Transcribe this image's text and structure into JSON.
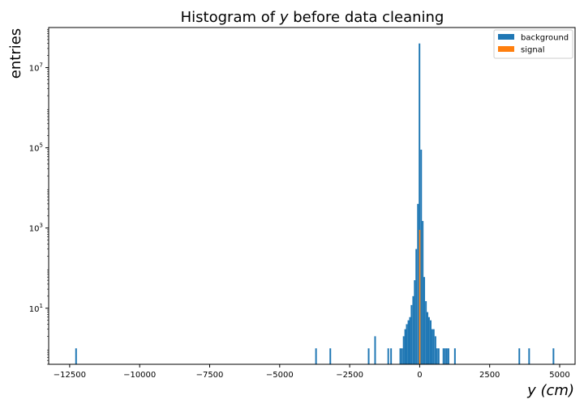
{
  "chart_data": {
    "type": "bar",
    "title_prefix": "Histogram of ",
    "title_var": "y",
    "title_suffix": " before data cleaning",
    "xlabel_var": "y",
    "xlabel_unit": "(cm)",
    "ylabel": "entries",
    "yscale": "log",
    "xlim": [
      -13250,
      5550
    ],
    "ylim": [
      0.4,
      100000000
    ],
    "xticks": [
      -12500,
      -10000,
      -7500,
      -5000,
      -2500,
      0,
      2500,
      5000
    ],
    "xtick_labels": [
      "−12500",
      "−10000",
      "−7500",
      "−5000",
      "−2500",
      "0",
      "2500",
      "5000"
    ],
    "yticks": [
      {
        "base": "10",
        "exp": "1",
        "value": 10
      },
      {
        "base": "10",
        "exp": "3",
        "value": 1000
      },
      {
        "base": "10",
        "exp": "5",
        "value": 100000
      },
      {
        "base": "10",
        "exp": "7",
        "value": 10000000
      }
    ],
    "legend_position": "top-right",
    "series": [
      {
        "name": "background",
        "color": "#1f77b4",
        "bin_width": 57,
        "bins": [
          [
            -12300,
            1
          ],
          [
            -3730,
            1
          ],
          [
            -3220,
            1
          ],
          [
            -1850,
            1
          ],
          [
            -1620,
            2
          ],
          [
            -1150,
            1
          ],
          [
            -1050,
            1
          ],
          [
            -720,
            1
          ],
          [
            -660,
            1
          ],
          [
            -600,
            2
          ],
          [
            -545,
            3
          ],
          [
            -490,
            4
          ],
          [
            -430,
            5
          ],
          [
            -375,
            6
          ],
          [
            -320,
            12
          ],
          [
            -260,
            20
          ],
          [
            -205,
            50
          ],
          [
            -150,
            300
          ],
          [
            -90,
            4000
          ],
          [
            -35,
            40000000
          ],
          [
            25,
            90000
          ],
          [
            80,
            1500
          ],
          [
            135,
            60
          ],
          [
            195,
            15
          ],
          [
            250,
            8
          ],
          [
            305,
            6
          ],
          [
            365,
            5
          ],
          [
            420,
            3
          ],
          [
            475,
            3
          ],
          [
            535,
            2
          ],
          [
            590,
            1
          ],
          [
            650,
            1
          ],
          [
            820,
            1
          ],
          [
            880,
            1
          ],
          [
            940,
            1
          ],
          [
            1000,
            1
          ],
          [
            1230,
            1
          ],
          [
            3530,
            1
          ],
          [
            3880,
            1
          ],
          [
            4750,
            1
          ]
        ]
      },
      {
        "name": "signal",
        "color": "#ff7f0e",
        "bin_width": 40,
        "bins": [
          [
            -20,
            900
          ]
        ]
      }
    ]
  }
}
